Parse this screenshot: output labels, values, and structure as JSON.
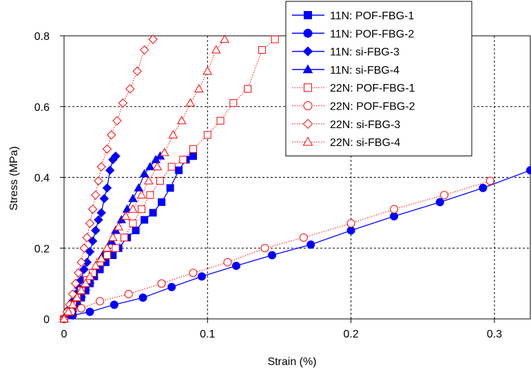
{
  "chart_data": {
    "type": "line",
    "xlabel": "Strain (%)",
    "ylabel": "Stress (MPa)",
    "xlim": [
      0,
      0.325
    ],
    "ylim": [
      0,
      0.8
    ],
    "xticks": [
      0,
      0.1,
      0.2,
      0.3
    ],
    "xtick_labels": [
      "0",
      "0.1",
      "0.2",
      "0.3"
    ],
    "yticks": [
      0,
      0.2,
      0.4,
      0.6,
      0.8
    ],
    "ytick_labels": [
      "0",
      "0.2",
      "0.4",
      "0.6",
      "0.8"
    ],
    "grid": "dashed",
    "legend_position": "top-right",
    "series": [
      {
        "name": "11N: POF-FBG-1",
        "color": "#0000ff",
        "marker": "square",
        "filled": true,
        "line": "solid",
        "points": [
          [
            0,
            0
          ],
          [
            0.003,
            0.01
          ],
          [
            0.006,
            0.02
          ],
          [
            0.009,
            0.04
          ],
          [
            0.012,
            0.06
          ],
          [
            0.015,
            0.08
          ],
          [
            0.018,
            0.1
          ],
          [
            0.021,
            0.12
          ],
          [
            0.025,
            0.14
          ],
          [
            0.029,
            0.16
          ],
          [
            0.034,
            0.18
          ],
          [
            0.038,
            0.2
          ],
          [
            0.044,
            0.23
          ],
          [
            0.05,
            0.25
          ],
          [
            0.056,
            0.28
          ],
          [
            0.062,
            0.3
          ],
          [
            0.068,
            0.33
          ],
          [
            0.074,
            0.37
          ],
          [
            0.08,
            0.42
          ],
          [
            0.085,
            0.45
          ],
          [
            0.09,
            0.46
          ]
        ]
      },
      {
        "name": "11N: POF-FBG-2",
        "color": "#0000ff",
        "marker": "circle",
        "filled": true,
        "line": "solid",
        "points": [
          [
            0,
            0
          ],
          [
            0.006,
            0.01
          ],
          [
            0.018,
            0.02
          ],
          [
            0.035,
            0.04
          ],
          [
            0.055,
            0.06
          ],
          [
            0.075,
            0.09
          ],
          [
            0.096,
            0.12
          ],
          [
            0.12,
            0.15
          ],
          [
            0.145,
            0.18
          ],
          [
            0.172,
            0.21
          ],
          [
            0.2,
            0.25
          ],
          [
            0.23,
            0.29
          ],
          [
            0.262,
            0.33
          ],
          [
            0.292,
            0.37
          ],
          [
            0.325,
            0.42
          ]
        ]
      },
      {
        "name": "11N: si-FBG-3",
        "color": "#0000ff",
        "marker": "diamond",
        "filled": true,
        "line": "solid",
        "points": [
          [
            0,
            0
          ],
          [
            0.002,
            0.01
          ],
          [
            0.004,
            0.03
          ],
          [
            0.006,
            0.05
          ],
          [
            0.008,
            0.07
          ],
          [
            0.01,
            0.09
          ],
          [
            0.012,
            0.11
          ],
          [
            0.014,
            0.14
          ],
          [
            0.016,
            0.16
          ],
          [
            0.018,
            0.19
          ],
          [
            0.02,
            0.22
          ],
          [
            0.022,
            0.25
          ],
          [
            0.024,
            0.28
          ],
          [
            0.026,
            0.3
          ],
          [
            0.028,
            0.34
          ],
          [
            0.03,
            0.37
          ],
          [
            0.032,
            0.42
          ],
          [
            0.034,
            0.45
          ],
          [
            0.036,
            0.46
          ]
        ]
      },
      {
        "name": "11N: si-FBG-4",
        "color": "#0000ff",
        "marker": "triangle",
        "filled": true,
        "line": "solid",
        "points": [
          [
            0,
            0
          ],
          [
            0.003,
            0.01
          ],
          [
            0.006,
            0.03
          ],
          [
            0.009,
            0.05
          ],
          [
            0.012,
            0.07
          ],
          [
            0.015,
            0.09
          ],
          [
            0.018,
            0.11
          ],
          [
            0.021,
            0.14
          ],
          [
            0.024,
            0.16
          ],
          [
            0.027,
            0.18
          ],
          [
            0.03,
            0.2
          ],
          [
            0.033,
            0.22
          ],
          [
            0.036,
            0.25
          ],
          [
            0.04,
            0.28
          ],
          [
            0.044,
            0.31
          ],
          [
            0.048,
            0.34
          ],
          [
            0.052,
            0.37
          ],
          [
            0.056,
            0.41
          ],
          [
            0.06,
            0.43
          ],
          [
            0.064,
            0.45
          ],
          [
            0.067,
            0.46
          ]
        ]
      },
      {
        "name": "22N: POF-FBG-1",
        "color": "#ff0000",
        "marker": "square",
        "filled": false,
        "line": "dotted",
        "points": [
          [
            0,
            0
          ],
          [
            0.003,
            0.02
          ],
          [
            0.006,
            0.04
          ],
          [
            0.009,
            0.06
          ],
          [
            0.012,
            0.08
          ],
          [
            0.016,
            0.11
          ],
          [
            0.02,
            0.13
          ],
          [
            0.025,
            0.16
          ],
          [
            0.03,
            0.18
          ],
          [
            0.036,
            0.2
          ],
          [
            0.042,
            0.23
          ],
          [
            0.048,
            0.27
          ],
          [
            0.054,
            0.31
          ],
          [
            0.06,
            0.35
          ],
          [
            0.067,
            0.39
          ],
          [
            0.075,
            0.43
          ],
          [
            0.083,
            0.45
          ],
          [
            0.09,
            0.48
          ],
          [
            0.1,
            0.52
          ],
          [
            0.109,
            0.56
          ],
          [
            0.118,
            0.61
          ],
          [
            0.128,
            0.65
          ],
          [
            0.138,
            0.76
          ],
          [
            0.147,
            0.79
          ]
        ]
      },
      {
        "name": "22N: POF-FBG-2",
        "color": "#ff0000",
        "marker": "circle",
        "filled": false,
        "line": "dotted",
        "points": [
          [
            0,
            0
          ],
          [
            0.005,
            0.02
          ],
          [
            0.012,
            0.03
          ],
          [
            0.025,
            0.05
          ],
          [
            0.045,
            0.07
          ],
          [
            0.068,
            0.1
          ],
          [
            0.09,
            0.13
          ],
          [
            0.114,
            0.16
          ],
          [
            0.14,
            0.2
          ],
          [
            0.167,
            0.23
          ],
          [
            0.2,
            0.27
          ],
          [
            0.23,
            0.31
          ],
          [
            0.265,
            0.35
          ],
          [
            0.297,
            0.39
          ]
        ]
      },
      {
        "name": "22N: si-FBG-3",
        "color": "#ff0000",
        "marker": "diamond",
        "filled": false,
        "line": "dotted",
        "points": [
          [
            0,
            0
          ],
          [
            0.002,
            0.02
          ],
          [
            0.004,
            0.04
          ],
          [
            0.006,
            0.07
          ],
          [
            0.008,
            0.1
          ],
          [
            0.01,
            0.13
          ],
          [
            0.012,
            0.16
          ],
          [
            0.014,
            0.2
          ],
          [
            0.016,
            0.23
          ],
          [
            0.018,
            0.27
          ],
          [
            0.02,
            0.31
          ],
          [
            0.022,
            0.35
          ],
          [
            0.024,
            0.39
          ],
          [
            0.026,
            0.43
          ],
          [
            0.03,
            0.48
          ],
          [
            0.033,
            0.52
          ],
          [
            0.037,
            0.56
          ],
          [
            0.041,
            0.61
          ],
          [
            0.046,
            0.65
          ],
          [
            0.051,
            0.7
          ],
          [
            0.056,
            0.76
          ],
          [
            0.062,
            0.79
          ]
        ]
      },
      {
        "name": "22N: si-FBG-4",
        "color": "#ff0000",
        "marker": "triangle",
        "filled": false,
        "line": "dotted",
        "points": [
          [
            0,
            0
          ],
          [
            0.003,
            0.02
          ],
          [
            0.006,
            0.04
          ],
          [
            0.009,
            0.06
          ],
          [
            0.012,
            0.08
          ],
          [
            0.015,
            0.1
          ],
          [
            0.018,
            0.12
          ],
          [
            0.022,
            0.15
          ],
          [
            0.026,
            0.17
          ],
          [
            0.03,
            0.2
          ],
          [
            0.034,
            0.23
          ],
          [
            0.038,
            0.26
          ],
          [
            0.043,
            0.29
          ],
          [
            0.048,
            0.31
          ],
          [
            0.054,
            0.35
          ],
          [
            0.059,
            0.39
          ],
          [
            0.065,
            0.43
          ],
          [
            0.07,
            0.47
          ],
          [
            0.076,
            0.52
          ],
          [
            0.082,
            0.56
          ],
          [
            0.088,
            0.61
          ],
          [
            0.094,
            0.65
          ],
          [
            0.1,
            0.7
          ],
          [
            0.106,
            0.76
          ],
          [
            0.112,
            0.79
          ]
        ]
      }
    ]
  }
}
